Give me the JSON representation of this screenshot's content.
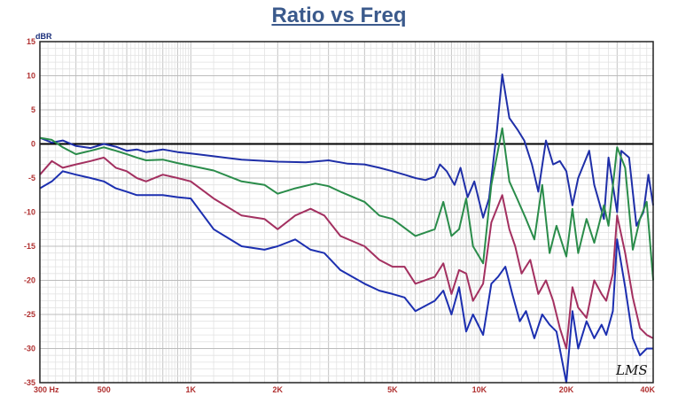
{
  "chart_data": {
    "type": "line",
    "title": "Ratio vs Freq",
    "ylabel": "dBR",
    "xlabel": "",
    "x_scale": "log",
    "xlim": [
      300,
      40000
    ],
    "ylim": [
      -35,
      15
    ],
    "grid": true,
    "y_ticks": [
      "15",
      "10",
      "5",
      "0",
      "-5",
      "-10",
      "-15",
      "-20",
      "-25",
      "-30",
      "-35"
    ],
    "x_ticks": [
      {
        "value": 300,
        "label": "300 Hz"
      },
      {
        "value": 500,
        "label": "500"
      },
      {
        "value": 1000,
        "label": "1K"
      },
      {
        "value": 2000,
        "label": "2K"
      },
      {
        "value": 5000,
        "label": "5K"
      },
      {
        "value": 10000,
        "label": "10K"
      },
      {
        "value": 20000,
        "label": "20K"
      },
      {
        "value": 40000,
        "label": "40K"
      }
    ],
    "reference_line": 0,
    "watermark": "LMS",
    "colors": {
      "title": "#3b5a8c",
      "ticks": "#b03030",
      "ylabel": "#1a2e7a",
      "zero_line": "#000000"
    },
    "series": [
      {
        "color": "#1f2fa8",
        "points": [
          [
            300,
            0.9
          ],
          [
            330,
            0.2
          ],
          [
            360,
            0.5
          ],
          [
            400,
            -0.3
          ],
          [
            450,
            -0.6
          ],
          [
            500,
            0.0
          ],
          [
            550,
            -0.4
          ],
          [
            600,
            -1.0
          ],
          [
            650,
            -0.8
          ],
          [
            700,
            -1.2
          ],
          [
            800,
            -0.8
          ],
          [
            900,
            -1.2
          ],
          [
            1000,
            -1.4
          ],
          [
            1200,
            -1.8
          ],
          [
            1500,
            -2.3
          ],
          [
            2000,
            -2.6
          ],
          [
            2500,
            -2.7
          ],
          [
            3000,
            -2.4
          ],
          [
            3500,
            -2.9
          ],
          [
            4000,
            -3.0
          ],
          [
            4500,
            -3.5
          ],
          [
            5000,
            -4.0
          ],
          [
            5500,
            -4.5
          ],
          [
            6000,
            -5.0
          ],
          [
            6500,
            -5.3
          ],
          [
            7000,
            -4.8
          ],
          [
            7300,
            -3.0
          ],
          [
            7700,
            -4.0
          ],
          [
            8200,
            -6.0
          ],
          [
            8600,
            -3.5
          ],
          [
            9100,
            -7.8
          ],
          [
            9600,
            -5.5
          ],
          [
            10300,
            -10.8
          ],
          [
            10800,
            -8.0
          ],
          [
            11500,
            2.0
          ],
          [
            12000,
            10.2
          ],
          [
            12700,
            3.8
          ],
          [
            13600,
            2.0
          ],
          [
            14300,
            0.5
          ],
          [
            15200,
            -3.0
          ],
          [
            16000,
            -7.0
          ],
          [
            17000,
            0.5
          ],
          [
            18000,
            -3.0
          ],
          [
            19000,
            -2.5
          ],
          [
            20000,
            -4.0
          ],
          [
            21000,
            -9.0
          ],
          [
            22000,
            -5.0
          ],
          [
            24000,
            -1.0
          ],
          [
            25000,
            -6.0
          ],
          [
            27000,
            -11.0
          ],
          [
            28000,
            -2.0
          ],
          [
            30000,
            -10.0
          ],
          [
            31000,
            -1.0
          ],
          [
            33000,
            -2.0
          ],
          [
            35000,
            -12.0
          ],
          [
            37000,
            -10.0
          ],
          [
            38500,
            -4.5
          ],
          [
            40000,
            -9.0
          ]
        ]
      },
      {
        "color": "#2a8c4a",
        "points": [
          [
            300,
            0.9
          ],
          [
            330,
            0.6
          ],
          [
            360,
            -0.5
          ],
          [
            400,
            -1.5
          ],
          [
            450,
            -1.0
          ],
          [
            500,
            -0.5
          ],
          [
            550,
            -1.0
          ],
          [
            600,
            -1.5
          ],
          [
            650,
            -2.0
          ],
          [
            700,
            -2.4
          ],
          [
            800,
            -2.3
          ],
          [
            900,
            -2.8
          ],
          [
            1000,
            -3.2
          ],
          [
            1200,
            -3.9
          ],
          [
            1500,
            -5.5
          ],
          [
            1800,
            -6.0
          ],
          [
            2000,
            -7.3
          ],
          [
            2300,
            -6.5
          ],
          [
            2700,
            -5.8
          ],
          [
            3000,
            -6.2
          ],
          [
            3300,
            -7.0
          ],
          [
            4000,
            -8.5
          ],
          [
            4500,
            -10.5
          ],
          [
            5000,
            -11.0
          ],
          [
            6000,
            -13.5
          ],
          [
            7000,
            -12.5
          ],
          [
            7500,
            -8.5
          ],
          [
            8000,
            -13.5
          ],
          [
            8500,
            -12.5
          ],
          [
            9000,
            -8.0
          ],
          [
            9500,
            -15.0
          ],
          [
            10300,
            -17.5
          ],
          [
            11000,
            -6.0
          ],
          [
            12000,
            2.3
          ],
          [
            12700,
            -5.5
          ],
          [
            13500,
            -8.0
          ],
          [
            14500,
            -11.0
          ],
          [
            15500,
            -14.0
          ],
          [
            16500,
            -6.0
          ],
          [
            17500,
            -16.0
          ],
          [
            18500,
            -12.0
          ],
          [
            20000,
            -16.5
          ],
          [
            21000,
            -9.5
          ],
          [
            22000,
            -16.0
          ],
          [
            23500,
            -11.0
          ],
          [
            25000,
            -14.5
          ],
          [
            27000,
            -9.0
          ],
          [
            28000,
            -12.0
          ],
          [
            30000,
            -0.5
          ],
          [
            32000,
            -3.5
          ],
          [
            34000,
            -15.5
          ],
          [
            36000,
            -11.0
          ],
          [
            38000,
            -8.5
          ],
          [
            40000,
            -20.0
          ]
        ]
      },
      {
        "color": "#a33060",
        "points": [
          [
            300,
            -4.5
          ],
          [
            330,
            -2.5
          ],
          [
            360,
            -3.5
          ],
          [
            400,
            -3.0
          ],
          [
            450,
            -2.5
          ],
          [
            500,
            -2.0
          ],
          [
            550,
            -3.5
          ],
          [
            600,
            -4.0
          ],
          [
            650,
            -5.0
          ],
          [
            700,
            -5.5
          ],
          [
            800,
            -4.5
          ],
          [
            900,
            -5.0
          ],
          [
            1000,
            -5.5
          ],
          [
            1200,
            -8.0
          ],
          [
            1500,
            -10.5
          ],
          [
            1800,
            -11.0
          ],
          [
            2000,
            -12.5
          ],
          [
            2300,
            -10.5
          ],
          [
            2600,
            -9.5
          ],
          [
            2900,
            -10.5
          ],
          [
            3300,
            -13.5
          ],
          [
            4000,
            -15.0
          ],
          [
            4500,
            -17.0
          ],
          [
            5000,
            -18.0
          ],
          [
            5500,
            -18.0
          ],
          [
            6000,
            -20.5
          ],
          [
            7000,
            -19.5
          ],
          [
            7500,
            -17.5
          ],
          [
            8000,
            -22.0
          ],
          [
            8500,
            -18.5
          ],
          [
            9000,
            -19.0
          ],
          [
            9500,
            -23.0
          ],
          [
            10300,
            -20.5
          ],
          [
            11000,
            -11.5
          ],
          [
            12000,
            -7.5
          ],
          [
            12700,
            -12.5
          ],
          [
            13300,
            -15.0
          ],
          [
            14000,
            -19.0
          ],
          [
            15000,
            -17.0
          ],
          [
            16000,
            -22.0
          ],
          [
            17000,
            -20.0
          ],
          [
            18000,
            -23.0
          ],
          [
            19000,
            -27.0
          ],
          [
            20000,
            -30.0
          ],
          [
            21000,
            -21.0
          ],
          [
            22000,
            -24.0
          ],
          [
            23500,
            -25.5
          ],
          [
            25000,
            -20.0
          ],
          [
            26500,
            -22.0
          ],
          [
            27500,
            -23.0
          ],
          [
            29000,
            -19.0
          ],
          [
            30000,
            -10.5
          ],
          [
            32000,
            -16.0
          ],
          [
            34000,
            -22.5
          ],
          [
            36000,
            -27.0
          ],
          [
            38000,
            -28.0
          ],
          [
            40000,
            -28.5
          ]
        ]
      },
      {
        "color": "#1c2fb0",
        "points": [
          [
            300,
            -6.5
          ],
          [
            330,
            -5.5
          ],
          [
            360,
            -4.0
          ],
          [
            400,
            -4.5
          ],
          [
            450,
            -5.0
          ],
          [
            500,
            -5.5
          ],
          [
            550,
            -6.5
          ],
          [
            600,
            -7.0
          ],
          [
            650,
            -7.5
          ],
          [
            700,
            -7.5
          ],
          [
            800,
            -7.5
          ],
          [
            900,
            -7.8
          ],
          [
            1000,
            -8.0
          ],
          [
            1200,
            -12.5
          ],
          [
            1500,
            -15.0
          ],
          [
            1800,
            -15.5
          ],
          [
            2000,
            -15.0
          ],
          [
            2300,
            -14.0
          ],
          [
            2600,
            -15.5
          ],
          [
            2900,
            -16.0
          ],
          [
            3300,
            -18.5
          ],
          [
            4000,
            -20.5
          ],
          [
            4500,
            -21.5
          ],
          [
            5000,
            -22.0
          ],
          [
            5500,
            -22.5
          ],
          [
            6000,
            -24.5
          ],
          [
            7000,
            -23.0
          ],
          [
            7500,
            -21.5
          ],
          [
            8000,
            -25.0
          ],
          [
            8500,
            -21.0
          ],
          [
            9000,
            -27.5
          ],
          [
            9500,
            -25.0
          ],
          [
            10300,
            -28.0
          ],
          [
            11000,
            -20.5
          ],
          [
            11600,
            -19.5
          ],
          [
            12300,
            -18.0
          ],
          [
            13000,
            -22.0
          ],
          [
            13800,
            -26.0
          ],
          [
            14500,
            -24.5
          ],
          [
            15500,
            -28.5
          ],
          [
            16500,
            -25.0
          ],
          [
            17500,
            -26.5
          ],
          [
            18500,
            -27.5
          ],
          [
            20000,
            -35.5
          ],
          [
            21000,
            -24.5
          ],
          [
            22000,
            -30.0
          ],
          [
            23500,
            -26.0
          ],
          [
            25000,
            -28.5
          ],
          [
            26500,
            -26.5
          ],
          [
            27500,
            -28.0
          ],
          [
            29000,
            -24.5
          ],
          [
            30000,
            -14.0
          ],
          [
            32000,
            -21.0
          ],
          [
            34000,
            -28.5
          ],
          [
            36000,
            -31.0
          ],
          [
            38000,
            -30.0
          ],
          [
            40000,
            -30.0
          ]
        ]
      }
    ]
  }
}
